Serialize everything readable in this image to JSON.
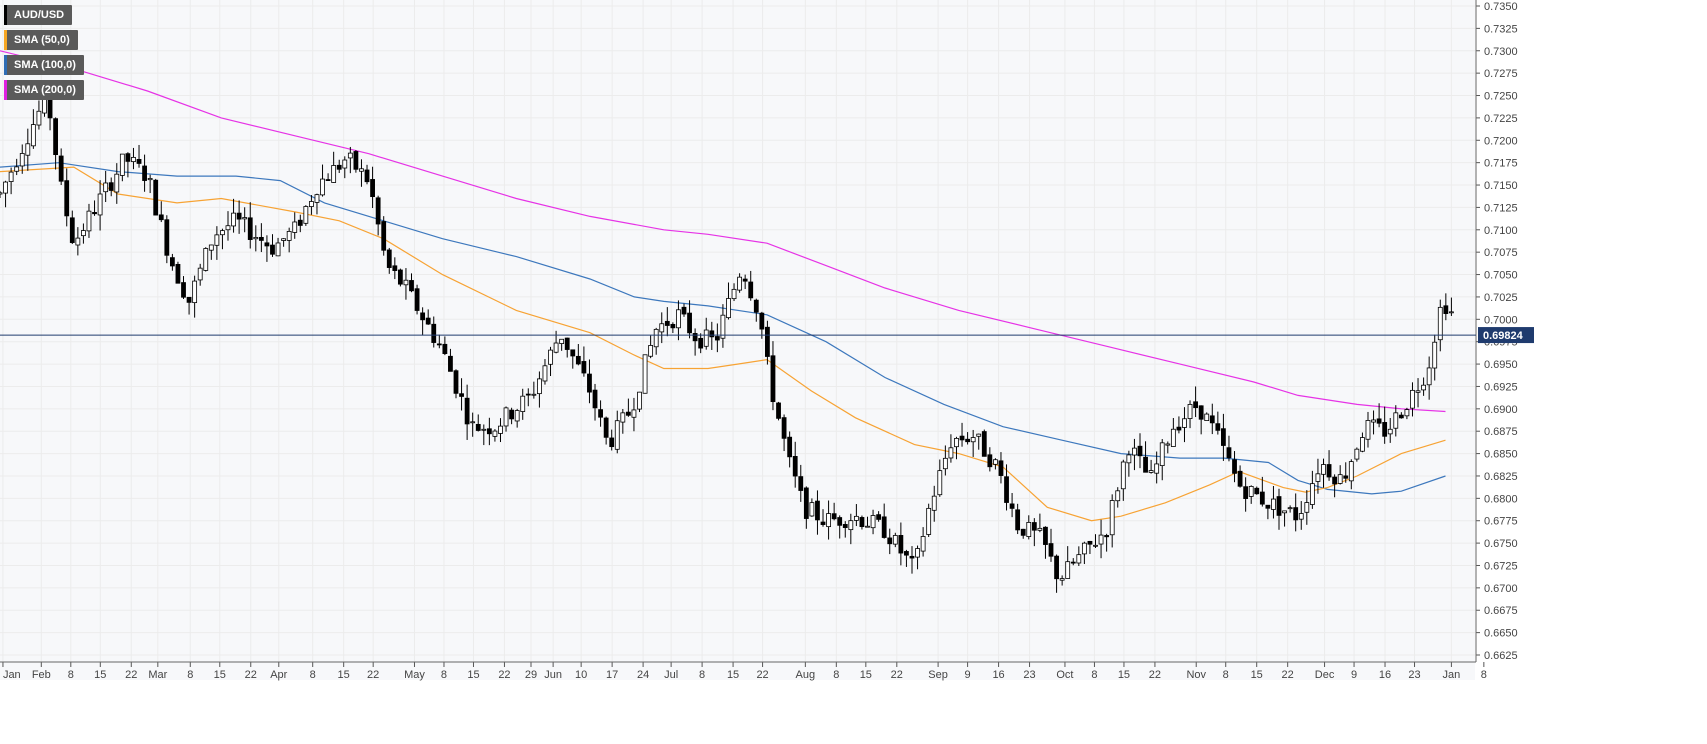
{
  "chart_data": {
    "type": "candlestick",
    "symbol": "AUD/USD",
    "price_label": "0.69824",
    "current_price": 0.69824,
    "ylim": [
      0.6625,
      0.735
    ],
    "y_ticks": [
      "0.7350",
      "0.7325",
      "0.7300",
      "0.7275",
      "0.7250",
      "0.7225",
      "0.7200",
      "0.7175",
      "0.7150",
      "0.7125",
      "0.7100",
      "0.7075",
      "0.7050",
      "0.7025",
      "0.7000",
      "0.6975",
      "0.6950",
      "0.6925",
      "0.6900",
      "0.6875",
      "0.6850",
      "0.6825",
      "0.6800",
      "0.6775",
      "0.6750",
      "0.6725",
      "0.6700",
      "0.6675",
      "0.6650",
      "0.6625"
    ],
    "x_labels": [
      "Jan",
      "Feb",
      "8",
      "15",
      "22",
      "Mar",
      "8",
      "15",
      "22",
      "Apr",
      "8",
      "15",
      "22",
      "May",
      "8",
      "15",
      "22",
      "29",
      "Jun",
      "10",
      "17",
      "24",
      "Jul",
      "8",
      "15",
      "22",
      "Aug",
      "8",
      "15",
      "22",
      "Sep",
      "9",
      "16",
      "23",
      "Oct",
      "8",
      "15",
      "22",
      "Nov",
      "8",
      "15",
      "22",
      "Dec",
      "9",
      "16",
      "23",
      "Jan",
      "8"
    ],
    "x_label_fracs": [
      0.002,
      0.028,
      0.048,
      0.068,
      0.089,
      0.107,
      0.129,
      0.149,
      0.17,
      0.189,
      0.212,
      0.233,
      0.253,
      0.281,
      0.301,
      0.321,
      0.342,
      0.36,
      0.375,
      0.394,
      0.415,
      0.436,
      0.455,
      0.476,
      0.497,
      0.517,
      0.546,
      0.567,
      0.587,
      0.608,
      0.636,
      0.656,
      0.677,
      0.698,
      0.722,
      0.742,
      0.762,
      0.783,
      0.811,
      0.831,
      0.852,
      0.873,
      0.898,
      0.918,
      0.939,
      0.959,
      0.984,
      1.006
    ],
    "legend": [
      {
        "label": "AUD/USD",
        "color": "#000000"
      },
      {
        "label": "SMA (50,0)",
        "color": "#f5a623"
      },
      {
        "label": "SMA (100,0)",
        "color": "#2f6db5"
      },
      {
        "label": "SMA (200,0)",
        "color": "#e020e0"
      }
    ],
    "colors": {
      "up": "#ffffff",
      "down": "#000000",
      "sma50": "#f7a334",
      "sma100": "#3d78bd",
      "sma200": "#e633e6",
      "price_line": "#1f3b6e",
      "grid": "#ececec"
    },
    "waypoints": [
      [
        0.0,
        0.714
      ],
      [
        0.02,
        0.721
      ],
      [
        0.032,
        0.725
      ],
      [
        0.042,
        0.714
      ],
      [
        0.05,
        0.7085
      ],
      [
        0.07,
        0.714
      ],
      [
        0.085,
        0.718
      ],
      [
        0.1,
        0.716
      ],
      [
        0.115,
        0.707
      ],
      [
        0.128,
        0.702
      ],
      [
        0.145,
        0.7095
      ],
      [
        0.16,
        0.711
      ],
      [
        0.185,
        0.708
      ],
      [
        0.2,
        0.71
      ],
      [
        0.215,
        0.715
      ],
      [
        0.235,
        0.718
      ],
      [
        0.25,
        0.7155
      ],
      [
        0.262,
        0.706
      ],
      [
        0.275,
        0.7035
      ],
      [
        0.3,
        0.6965
      ],
      [
        0.32,
        0.688
      ],
      [
        0.335,
        0.688
      ],
      [
        0.36,
        0.6915
      ],
      [
        0.38,
        0.6985
      ],
      [
        0.4,
        0.692
      ],
      [
        0.412,
        0.686
      ],
      [
        0.428,
        0.69
      ],
      [
        0.445,
        0.699
      ],
      [
        0.46,
        0.7005
      ],
      [
        0.472,
        0.698
      ],
      [
        0.485,
        0.6975
      ],
      [
        0.503,
        0.706
      ],
      [
        0.515,
        0.7005
      ],
      [
        0.522,
        0.693
      ],
      [
        0.535,
        0.684
      ],
      [
        0.545,
        0.679
      ],
      [
        0.56,
        0.6775
      ],
      [
        0.58,
        0.678
      ],
      [
        0.6,
        0.6765
      ],
      [
        0.62,
        0.672
      ],
      [
        0.63,
        0.679
      ],
      [
        0.645,
        0.6865
      ],
      [
        0.66,
        0.687
      ],
      [
        0.676,
        0.6835
      ],
      [
        0.69,
        0.677
      ],
      [
        0.706,
        0.6755
      ],
      [
        0.718,
        0.671
      ],
      [
        0.735,
        0.674
      ],
      [
        0.75,
        0.6765
      ],
      [
        0.765,
        0.686
      ],
      [
        0.78,
        0.682
      ],
      [
        0.795,
        0.688
      ],
      [
        0.812,
        0.6905
      ],
      [
        0.825,
        0.687
      ],
      [
        0.84,
        0.6815
      ],
      [
        0.86,
        0.6795
      ],
      [
        0.88,
        0.678
      ],
      [
        0.895,
        0.684
      ],
      [
        0.91,
        0.682
      ],
      [
        0.925,
        0.688
      ],
      [
        0.94,
        0.6875
      ],
      [
        0.955,
        0.691
      ],
      [
        0.968,
        0.6945
      ],
      [
        0.976,
        0.701
      ],
      [
        0.982,
        0.702
      ],
      [
        0.988,
        0.6982
      ]
    ],
    "sma50": [
      [
        0.0,
        0.7165
      ],
      [
        0.05,
        0.717
      ],
      [
        0.08,
        0.714
      ],
      [
        0.12,
        0.713
      ],
      [
        0.15,
        0.7135
      ],
      [
        0.2,
        0.712
      ],
      [
        0.23,
        0.711
      ],
      [
        0.26,
        0.709
      ],
      [
        0.3,
        0.705
      ],
      [
        0.35,
        0.701
      ],
      [
        0.4,
        0.6985
      ],
      [
        0.43,
        0.696
      ],
      [
        0.45,
        0.6945
      ],
      [
        0.48,
        0.6945
      ],
      [
        0.5,
        0.695
      ],
      [
        0.52,
        0.6955
      ],
      [
        0.55,
        0.692
      ],
      [
        0.58,
        0.689
      ],
      [
        0.62,
        0.686
      ],
      [
        0.65,
        0.685
      ],
      [
        0.68,
        0.6835
      ],
      [
        0.71,
        0.679
      ],
      [
        0.74,
        0.6775
      ],
      [
        0.76,
        0.678
      ],
      [
        0.79,
        0.6795
      ],
      [
        0.82,
        0.6815
      ],
      [
        0.84,
        0.683
      ],
      [
        0.87,
        0.6812
      ],
      [
        0.885,
        0.6807
      ],
      [
        0.9,
        0.6812
      ],
      [
        0.92,
        0.6825
      ],
      [
        0.95,
        0.685
      ],
      [
        0.98,
        0.6865
      ]
    ],
    "sma100": [
      [
        0.0,
        0.717
      ],
      [
        0.04,
        0.7175
      ],
      [
        0.08,
        0.7165
      ],
      [
        0.12,
        0.716
      ],
      [
        0.16,
        0.716
      ],
      [
        0.19,
        0.7155
      ],
      [
        0.22,
        0.713
      ],
      [
        0.26,
        0.711
      ],
      [
        0.3,
        0.709
      ],
      [
        0.35,
        0.707
      ],
      [
        0.4,
        0.7045
      ],
      [
        0.43,
        0.7025
      ],
      [
        0.45,
        0.702
      ],
      [
        0.48,
        0.7015
      ],
      [
        0.52,
        0.7005
      ],
      [
        0.56,
        0.6975
      ],
      [
        0.6,
        0.6935
      ],
      [
        0.64,
        0.6905
      ],
      [
        0.68,
        0.688
      ],
      [
        0.72,
        0.6865
      ],
      [
        0.76,
        0.685
      ],
      [
        0.8,
        0.6845
      ],
      [
        0.83,
        0.6845
      ],
      [
        0.86,
        0.684
      ],
      [
        0.88,
        0.682
      ],
      [
        0.9,
        0.681
      ],
      [
        0.93,
        0.6805
      ],
      [
        0.95,
        0.6808
      ],
      [
        0.98,
        0.6825
      ]
    ],
    "sma200": [
      [
        0.0,
        0.73
      ],
      [
        0.05,
        0.728
      ],
      [
        0.1,
        0.7255
      ],
      [
        0.15,
        0.7225
      ],
      [
        0.2,
        0.7205
      ],
      [
        0.25,
        0.7185
      ],
      [
        0.3,
        0.716
      ],
      [
        0.35,
        0.7135
      ],
      [
        0.4,
        0.7115
      ],
      [
        0.45,
        0.71
      ],
      [
        0.48,
        0.7095
      ],
      [
        0.52,
        0.7085
      ],
      [
        0.56,
        0.706
      ],
      [
        0.6,
        0.7035
      ],
      [
        0.65,
        0.701
      ],
      [
        0.7,
        0.699
      ],
      [
        0.75,
        0.697
      ],
      [
        0.8,
        0.695
      ],
      [
        0.85,
        0.693
      ],
      [
        0.88,
        0.6915
      ],
      [
        0.92,
        0.6905
      ],
      [
        0.95,
        0.69
      ],
      [
        0.98,
        0.6897
      ]
    ]
  }
}
